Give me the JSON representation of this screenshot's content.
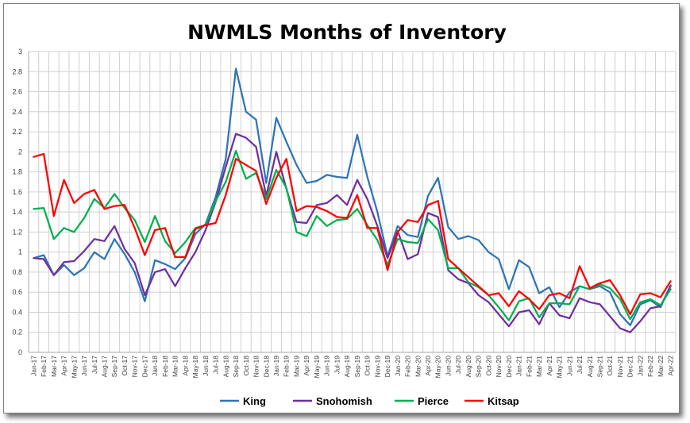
{
  "chart_data": {
    "type": "line",
    "title": "NWMLS Months of Inventory",
    "xlabel": "",
    "ylabel": "",
    "ylim": [
      0,
      3
    ],
    "yticks": [
      "0",
      "0.2",
      "0.4",
      "0.6",
      "0.8",
      "1",
      "1.2",
      "1.4",
      "1.6",
      "1.8",
      "2",
      "2.2",
      "2.4",
      "2.6",
      "2.8",
      "3"
    ],
    "grid": true,
    "legend_position": "bottom",
    "x": [
      "Jan-17",
      "Feb-17",
      "Mar-17",
      "Apr-17",
      "May-17",
      "Jun-17",
      "Jul-17",
      "Aug-17",
      "Sep-17",
      "Oct-17",
      "Nov-17",
      "Dec-17",
      "Jan-18",
      "Feb-18",
      "Mar-18",
      "Apr-18",
      "May-18",
      "Jun-18",
      "Jul-18",
      "Aug-18",
      "Sep-18",
      "Oct-18",
      "Nov-18",
      "Dec-18",
      "Jan-19",
      "Feb-19",
      "Mar-19",
      "Apr-19",
      "May-19",
      "Jun-19",
      "Jul-19",
      "Aug-19",
      "Sep-19",
      "Oct-19",
      "Nov-19",
      "Dec-19",
      "Jan-20",
      "Feb-20",
      "Mar-20",
      "Apr-20",
      "May-20",
      "Jun-20",
      "Jul-20",
      "Aug-20",
      "Sep-20",
      "Oct-20",
      "Nov-20",
      "Dec-20",
      "Jan-21",
      "Feb-21",
      "Mar-21",
      "Apr-21",
      "May-21",
      "Jun-21",
      "Jul-21",
      "Aug-21",
      "Sep-21",
      "Oct-21",
      "Nov-21",
      "Dec-21",
      "Jan-22",
      "Feb-22",
      "Mar-22",
      "Apr-22"
    ],
    "xtick_labels": [
      "Jan-17",
      "Mar-17",
      "May-17",
      "Jul-17",
      "Sep-17",
      "Nov-17",
      "Jan-18",
      "Mar-18",
      "May-18",
      "Jul-18",
      "Sep-18",
      "Nov-18",
      "Jan-19",
      "Mar-19",
      "May-19",
      "Jul-19",
      "Sep-19",
      "Nov-19",
      "Jan-20",
      "Mar-20",
      "May-20",
      "Jul-20",
      "Sep-20",
      "Nov-20",
      "Jan-21",
      "Mar-21",
      "May-21",
      "Jul-21",
      "Sep-21",
      "Nov-21",
      "Jan-22",
      "Mar-22",
      "Feb-17",
      "Apr-17",
      "Jun-17",
      "Aug-17",
      "Oct-17",
      "Dec-17",
      "Feb-18",
      "Apr-18",
      "Jun-18",
      "Aug-18",
      "Oct-18",
      "Dec-18",
      "Feb-19",
      "Apr-19",
      "Jun-19",
      "Aug-19",
      "Oct-19",
      "Dec-19",
      "Feb-20",
      "Apr-20",
      "Jun-20",
      "Aug-20",
      "Oct-20",
      "Dec-20",
      "Feb-21",
      "Apr-21",
      "Jun-21",
      "Aug-21",
      "Oct-21",
      "Dec-21",
      "Feb-22",
      "Apr-22"
    ],
    "series": [
      {
        "name": "King",
        "color": "#2E75B6",
        "values": [
          0.94,
          0.97,
          0.77,
          0.87,
          0.77,
          0.84,
          1.0,
          0.93,
          1.13,
          0.98,
          0.8,
          0.51,
          0.92,
          0.88,
          0.83,
          0.94,
          1.18,
          1.28,
          1.55,
          1.93,
          2.83,
          2.4,
          2.32,
          1.69,
          2.34,
          2.1,
          1.87,
          1.69,
          1.71,
          1.77,
          1.75,
          1.74,
          2.17,
          1.75,
          1.4,
          0.96,
          1.26,
          1.17,
          1.15,
          1.56,
          1.74,
          1.25,
          1.13,
          1.16,
          1.12,
          1.0,
          0.93,
          0.63,
          0.92,
          0.85,
          0.59,
          0.65,
          0.45,
          0.6,
          0.66,
          0.63,
          0.66,
          0.6,
          0.38,
          0.27,
          0.48,
          0.52,
          0.45,
          0.67
        ]
      },
      {
        "name": "Snohomish",
        "color": "#7030A0",
        "values": [
          0.94,
          0.93,
          0.77,
          0.9,
          0.91,
          1.01,
          1.13,
          1.11,
          1.26,
          1.03,
          0.89,
          0.57,
          0.8,
          0.83,
          0.66,
          0.84,
          1.0,
          1.22,
          1.5,
          1.85,
          2.18,
          2.14,
          2.05,
          1.56,
          2.0,
          1.63,
          1.3,
          1.29,
          1.47,
          1.49,
          1.57,
          1.47,
          1.72,
          1.53,
          1.26,
          0.94,
          1.21,
          0.93,
          0.98,
          1.39,
          1.35,
          0.82,
          0.73,
          0.69,
          0.57,
          0.5,
          0.38,
          0.26,
          0.4,
          0.42,
          0.28,
          0.49,
          0.37,
          0.34,
          0.54,
          0.5,
          0.48,
          0.36,
          0.24,
          0.2,
          0.31,
          0.44,
          0.46,
          0.66
        ]
      },
      {
        "name": "Pierce",
        "color": "#00B050",
        "values": [
          1.43,
          1.44,
          1.13,
          1.24,
          1.2,
          1.34,
          1.53,
          1.44,
          1.58,
          1.44,
          1.32,
          1.1,
          1.36,
          1.11,
          0.99,
          1.1,
          1.24,
          1.27,
          1.51,
          1.7,
          2.01,
          1.73,
          1.79,
          1.53,
          1.82,
          1.64,
          1.2,
          1.16,
          1.36,
          1.26,
          1.32,
          1.33,
          1.43,
          1.27,
          1.12,
          0.87,
          1.13,
          1.1,
          1.09,
          1.33,
          1.22,
          0.84,
          0.84,
          0.7,
          0.65,
          0.57,
          0.45,
          0.32,
          0.51,
          0.54,
          0.35,
          0.49,
          0.49,
          0.48,
          0.66,
          0.63,
          0.68,
          0.64,
          0.53,
          0.33,
          0.5,
          0.53,
          0.47,
          0.63
        ]
      },
      {
        "name": "Kitsap",
        "color": "#FF0000",
        "values": [
          1.95,
          1.98,
          1.36,
          1.72,
          1.49,
          1.58,
          1.62,
          1.43,
          1.46,
          1.47,
          1.24,
          0.97,
          1.22,
          1.24,
          0.95,
          0.95,
          1.23,
          1.27,
          1.29,
          1.57,
          1.93,
          1.87,
          1.81,
          1.48,
          1.74,
          1.93,
          1.41,
          1.46,
          1.45,
          1.41,
          1.35,
          1.34,
          1.57,
          1.24,
          1.24,
          0.82,
          1.2,
          1.32,
          1.3,
          1.47,
          1.51,
          0.93,
          0.84,
          0.75,
          0.66,
          0.57,
          0.59,
          0.46,
          0.61,
          0.53,
          0.43,
          0.57,
          0.59,
          0.54,
          0.86,
          0.64,
          0.69,
          0.72,
          0.57,
          0.38,
          0.58,
          0.59,
          0.55,
          0.71
        ]
      }
    ]
  }
}
